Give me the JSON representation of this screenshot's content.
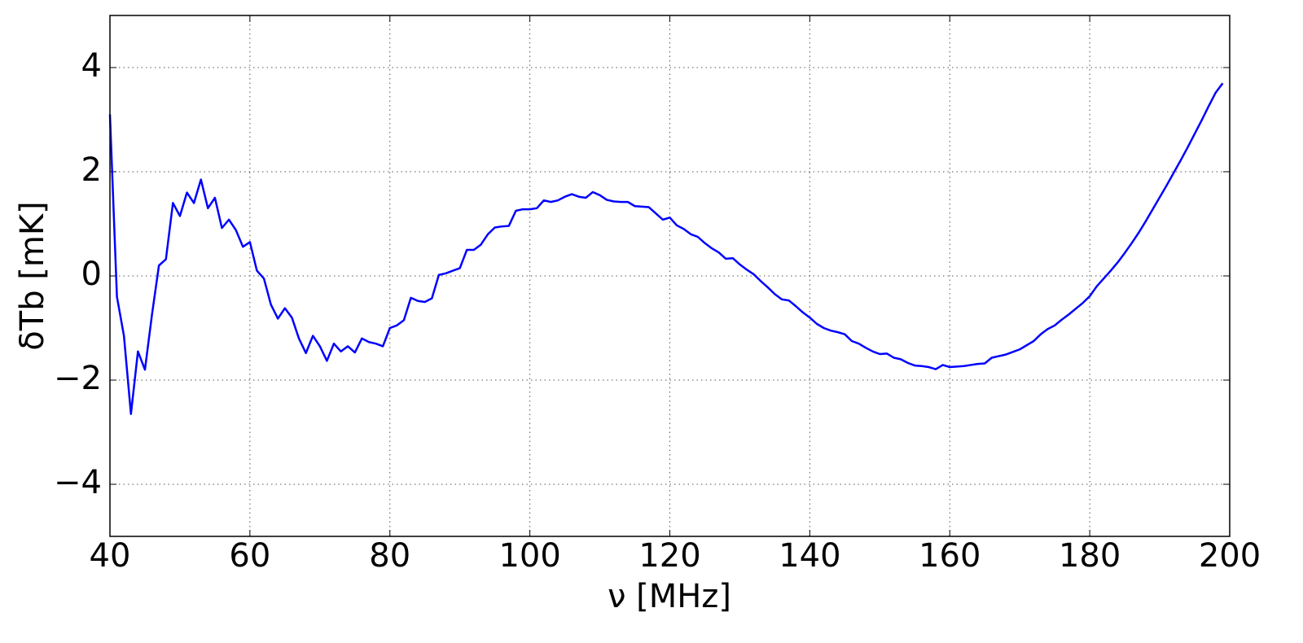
{
  "chart_data": {
    "type": "line",
    "xlabel": "ν [MHz]",
    "ylabel": "δTb [mK]",
    "x": [
      40,
      41,
      42,
      43,
      44,
      45,
      46,
      47,
      48,
      49,
      50,
      51,
      52,
      53,
      54,
      55,
      56,
      57,
      58,
      59,
      60,
      61,
      62,
      63,
      64,
      65,
      66,
      67,
      68,
      69,
      70,
      71,
      72,
      73,
      74,
      75,
      76,
      77,
      78,
      79,
      80,
      81,
      82,
      83,
      84,
      85,
      86,
      87,
      88,
      89,
      90,
      91,
      92,
      93,
      94,
      95,
      96,
      97,
      98,
      99,
      100,
      101,
      102,
      103,
      104,
      105,
      106,
      107,
      108,
      109,
      110,
      111,
      112,
      113,
      114,
      115,
      116,
      117,
      118,
      119,
      120,
      121,
      122,
      123,
      124,
      125,
      126,
      127,
      128,
      129,
      130,
      131,
      132,
      133,
      134,
      135,
      136,
      137,
      138,
      139,
      140,
      141,
      142,
      143,
      144,
      145,
      146,
      147,
      148,
      149,
      150,
      151,
      152,
      153,
      154,
      155,
      156,
      157,
      158,
      159,
      160,
      161,
      162,
      163,
      164,
      165,
      166,
      167,
      168,
      169,
      170,
      171,
      172,
      173,
      174,
      175,
      176,
      177,
      178,
      179,
      180,
      181,
      182,
      183,
      184,
      185,
      186,
      187,
      188,
      189,
      190,
      191,
      192,
      193,
      194,
      195,
      196,
      197,
      198,
      199
    ],
    "series": [
      {
        "color": "#0000ff",
        "values": [
          3.1,
          -0.4,
          -1.15,
          -2.65,
          -1.45,
          -1.8,
          -0.75,
          0.2,
          0.32,
          1.4,
          1.15,
          1.6,
          1.4,
          1.85,
          1.3,
          1.5,
          0.92,
          1.08,
          0.88,
          0.56,
          0.65,
          0.1,
          -0.05,
          -0.55,
          -0.82,
          -0.62,
          -0.8,
          -1.2,
          -1.48,
          -1.15,
          -1.35,
          -1.63,
          -1.3,
          -1.45,
          -1.35,
          -1.47,
          -1.2,
          -1.27,
          -1.3,
          -1.35,
          -1.0,
          -0.95,
          -0.85,
          -0.42,
          -0.48,
          -0.5,
          -0.43,
          0.02,
          0.05,
          0.1,
          0.15,
          0.5,
          0.5,
          0.6,
          0.8,
          0.93,
          0.95,
          0.96,
          1.25,
          1.28,
          1.28,
          1.3,
          1.45,
          1.42,
          1.45,
          1.52,
          1.57,
          1.52,
          1.5,
          1.61,
          1.55,
          1.46,
          1.43,
          1.42,
          1.42,
          1.34,
          1.33,
          1.32,
          1.2,
          1.08,
          1.12,
          0.97,
          0.9,
          0.8,
          0.75,
          0.63,
          0.53,
          0.45,
          0.33,
          0.34,
          0.22,
          0.12,
          0.03,
          -0.1,
          -0.22,
          -0.35,
          -0.45,
          -0.47,
          -0.58,
          -0.7,
          -0.8,
          -0.92,
          -1.0,
          -1.05,
          -1.08,
          -1.12,
          -1.25,
          -1.3,
          -1.38,
          -1.45,
          -1.5,
          -1.49,
          -1.57,
          -1.6,
          -1.67,
          -1.72,
          -1.73,
          -1.75,
          -1.79,
          -1.71,
          -1.75,
          -1.74,
          -1.73,
          -1.71,
          -1.69,
          -1.68,
          -1.57,
          -1.54,
          -1.51,
          -1.46,
          -1.41,
          -1.33,
          -1.25,
          -1.12,
          -1.02,
          -0.95,
          -0.84,
          -0.74,
          -0.63,
          -0.52,
          -0.39,
          -0.2,
          -0.05,
          0.1,
          0.26,
          0.44,
          0.63,
          0.83,
          1.05,
          1.28,
          1.51,
          1.74,
          1.98,
          2.22,
          2.47,
          2.73,
          2.99,
          3.26,
          3.52,
          3.7
        ]
      }
    ],
    "xlim": [
      40,
      200
    ],
    "xticks": [
      40,
      60,
      80,
      100,
      120,
      140,
      160,
      180,
      200
    ],
    "ylim": [
      -5,
      5
    ],
    "yticks": [
      {
        "value": -4,
        "label": "−4"
      },
      {
        "value": -2,
        "label": "−2"
      },
      0,
      2,
      4
    ],
    "grid": true
  }
}
